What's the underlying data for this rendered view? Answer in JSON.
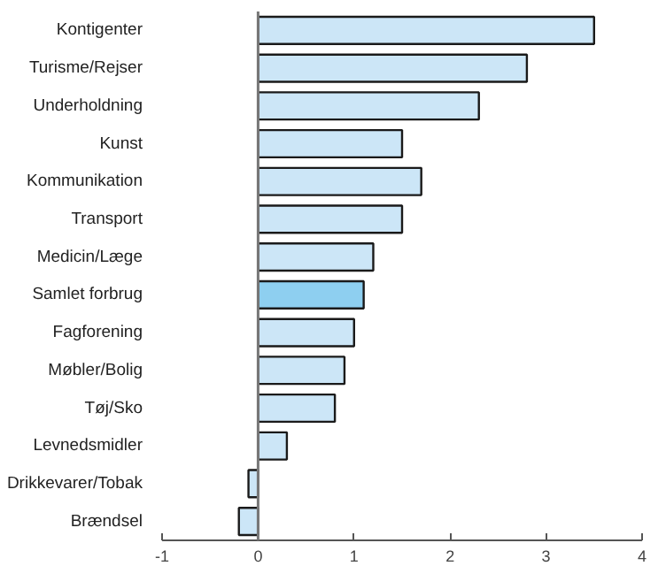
{
  "chart_data": {
    "type": "bar",
    "orientation": "horizontal",
    "categories": [
      "Kontigenter",
      "Turisme/Rejser",
      "Underholdning",
      "Kunst",
      "Kommunikation",
      "Transport",
      "Medicin/Læge",
      "Samlet forbrug",
      "Fagforening",
      "Møbler/Bolig",
      "Tøj/Sko",
      "Levnedsmidler",
      "Drikkevarer/Tobak",
      "Brændsel"
    ],
    "values": [
      3.5,
      2.8,
      2.3,
      1.5,
      1.7,
      1.5,
      1.2,
      1.1,
      1.0,
      0.9,
      0.8,
      0.3,
      -0.1,
      -0.2
    ],
    "colors": [
      "#cce6f7",
      "#cce6f7",
      "#cce6f7",
      "#cce6f7",
      "#cce6f7",
      "#cce6f7",
      "#cce6f7",
      "#8ecff0",
      "#cce6f7",
      "#cce6f7",
      "#cce6f7",
      "#cce6f7",
      "#cce6f7",
      "#cce6f7"
    ],
    "xlim": [
      -1,
      4
    ],
    "xticks": [
      -1,
      0,
      1,
      2,
      3,
      4
    ]
  }
}
